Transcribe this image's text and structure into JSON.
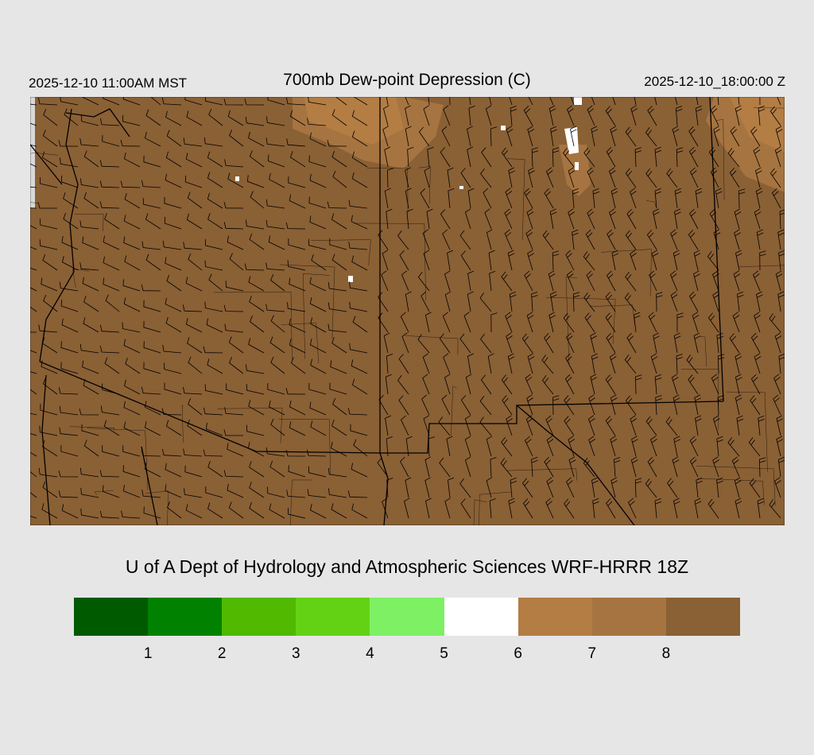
{
  "header": {
    "local_time": "2025-12-10 11:00AM MST",
    "title": "700mb Dew-point Depression (C)",
    "valid_time": "2025-12-10_18:00:00 Z"
  },
  "map": {
    "fill_color": "#8a6035",
    "moist_patch_colors": [
      "#a67440",
      "#b37d44",
      "#ffffff"
    ],
    "features": [
      "state-borders",
      "county-borders",
      "contours",
      "wind-barbs"
    ]
  },
  "credit": "U of A Dept of Hydrology and Atmospheric Sciences WRF-HRRR 18Z",
  "colorbar": {
    "colors": [
      "#005a00",
      "#008200",
      "#50b900",
      "#64d214",
      "#7ef064",
      "#ffffff",
      "#b37d44",
      "#a67440",
      "#8a6035"
    ],
    "labels": [
      "1",
      "2",
      "3",
      "4",
      "5",
      "6",
      "7",
      "8"
    ]
  }
}
